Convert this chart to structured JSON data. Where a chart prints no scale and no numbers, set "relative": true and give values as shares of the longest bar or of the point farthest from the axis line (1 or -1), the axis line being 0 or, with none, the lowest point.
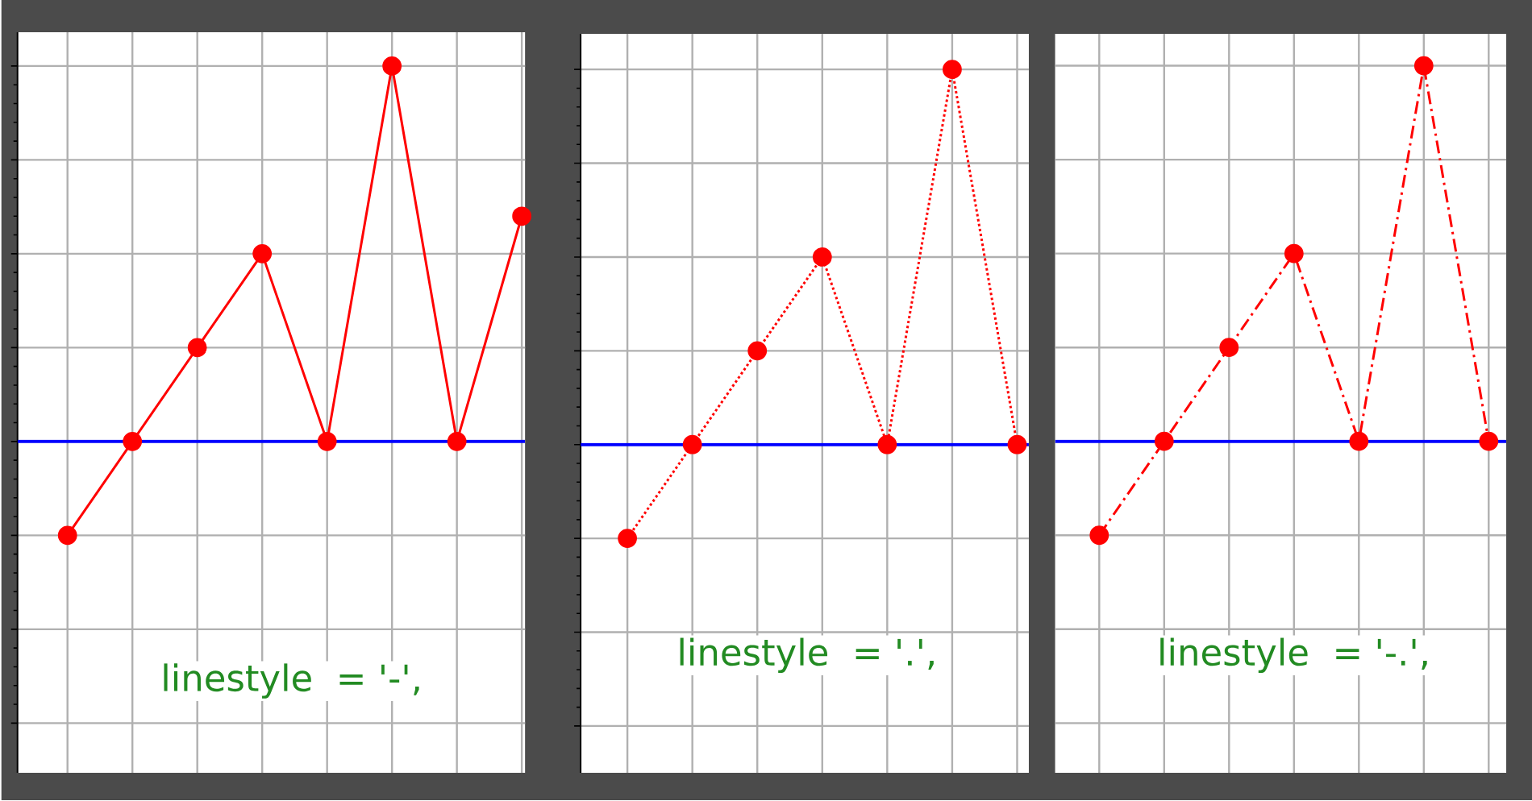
{
  "chart_data": [
    {
      "type": "line",
      "categories": [
        null,
        null,
        null,
        null,
        null,
        null,
        null,
        null
      ],
      "series": [
        {
          "color": "#ff0000",
          "values": [
            -0.25,
            0,
            0.25,
            0.5,
            0,
            1,
            0,
            0.6
          ]
        }
      ],
      "relative": true,
      "marker": "circle",
      "line_style": "solid",
      "grid": true,
      "ref_lines": [
        {
          "axis": "y",
          "value": 0,
          "color": "#0000ff"
        }
      ],
      "annotations": [
        "linestyle  = '-',"
      ]
    },
    {
      "type": "line",
      "categories": [
        null,
        null,
        null,
        null,
        null,
        null,
        null
      ],
      "series": [
        {
          "color": "#ff0000",
          "values": [
            -0.25,
            0,
            0.25,
            0.5,
            0,
            1,
            0
          ]
        }
      ],
      "relative": true,
      "marker": "circle",
      "line_style": "dotted",
      "grid": true,
      "ref_lines": [
        {
          "axis": "y",
          "value": 0,
          "color": "#0000ff"
        }
      ],
      "annotations": [
        "linestyle  = '.',"
      ]
    },
    {
      "type": "line",
      "categories": [
        null,
        null,
        null,
        null,
        null,
        null,
        null
      ],
      "series": [
        {
          "color": "#ff0000",
          "values": [
            -0.25,
            0,
            0.25,
            0.5,
            0,
            1,
            0
          ]
        }
      ],
      "relative": true,
      "marker": "circle",
      "line_style": "dashdot",
      "grid": true,
      "ref_lines": [
        {
          "axis": "y",
          "value": 0,
          "color": "#0000ff"
        }
      ],
      "annotations": [
        "linestyle  = '-.',"
      ]
    }
  ]
}
